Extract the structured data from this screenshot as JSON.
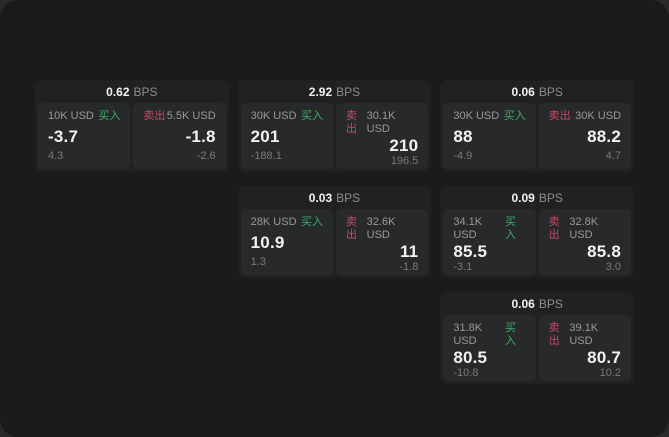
{
  "labels": {
    "bps": "BPS",
    "buy": "买入",
    "sell": "卖出"
  },
  "colors": {
    "page_bg": "#2a2a2a",
    "panel_bg": "#1a1b1b",
    "card_bg": "#1f2122",
    "tile_bg": "#28292b",
    "buy_green": "#3eaf6d",
    "sell_red": "#c44a63",
    "value_white": "#f1f2f3",
    "muted_gray": "#97999b"
  },
  "cards": [
    {
      "col": 1,
      "row": 1,
      "bps": "0.62",
      "buy": {
        "amount": "10K USD",
        "price": "-3.7",
        "delta": "4.3"
      },
      "sell": {
        "amount": "5.5K USD",
        "price": "-1.8",
        "delta": "-2.6"
      }
    },
    {
      "col": 2,
      "row": 1,
      "bps": "2.92",
      "buy": {
        "amount": "30K USD",
        "price": "201",
        "delta": "-188.1"
      },
      "sell": {
        "amount": "30.1K USD",
        "price": "210",
        "delta": "196.5"
      }
    },
    {
      "col": 3,
      "row": 1,
      "bps": "0.06",
      "buy": {
        "amount": "30K USD",
        "price": "88",
        "delta": "-4.9"
      },
      "sell": {
        "amount": "30K USD",
        "price": "88.2",
        "delta": "4.7"
      }
    },
    {
      "col": 2,
      "row": 2,
      "bps": "0.03",
      "buy": {
        "amount": "28K USD",
        "price": "10.9",
        "delta": "1.3"
      },
      "sell": {
        "amount": "32.6K USD",
        "price": "11",
        "delta": "-1.8"
      }
    },
    {
      "col": 3,
      "row": 2,
      "bps": "0.09",
      "buy": {
        "amount": "34.1K USD",
        "price": "85.5",
        "delta": "-3.1"
      },
      "sell": {
        "amount": "32.8K USD",
        "price": "85.8",
        "delta": "3.0"
      }
    },
    {
      "col": 3,
      "row": 3,
      "bps": "0.06",
      "buy": {
        "amount": "31.8K USD",
        "price": "80.5",
        "delta": "-10.8"
      },
      "sell": {
        "amount": "39.1K USD",
        "price": "80.7",
        "delta": "10.2"
      }
    }
  ]
}
